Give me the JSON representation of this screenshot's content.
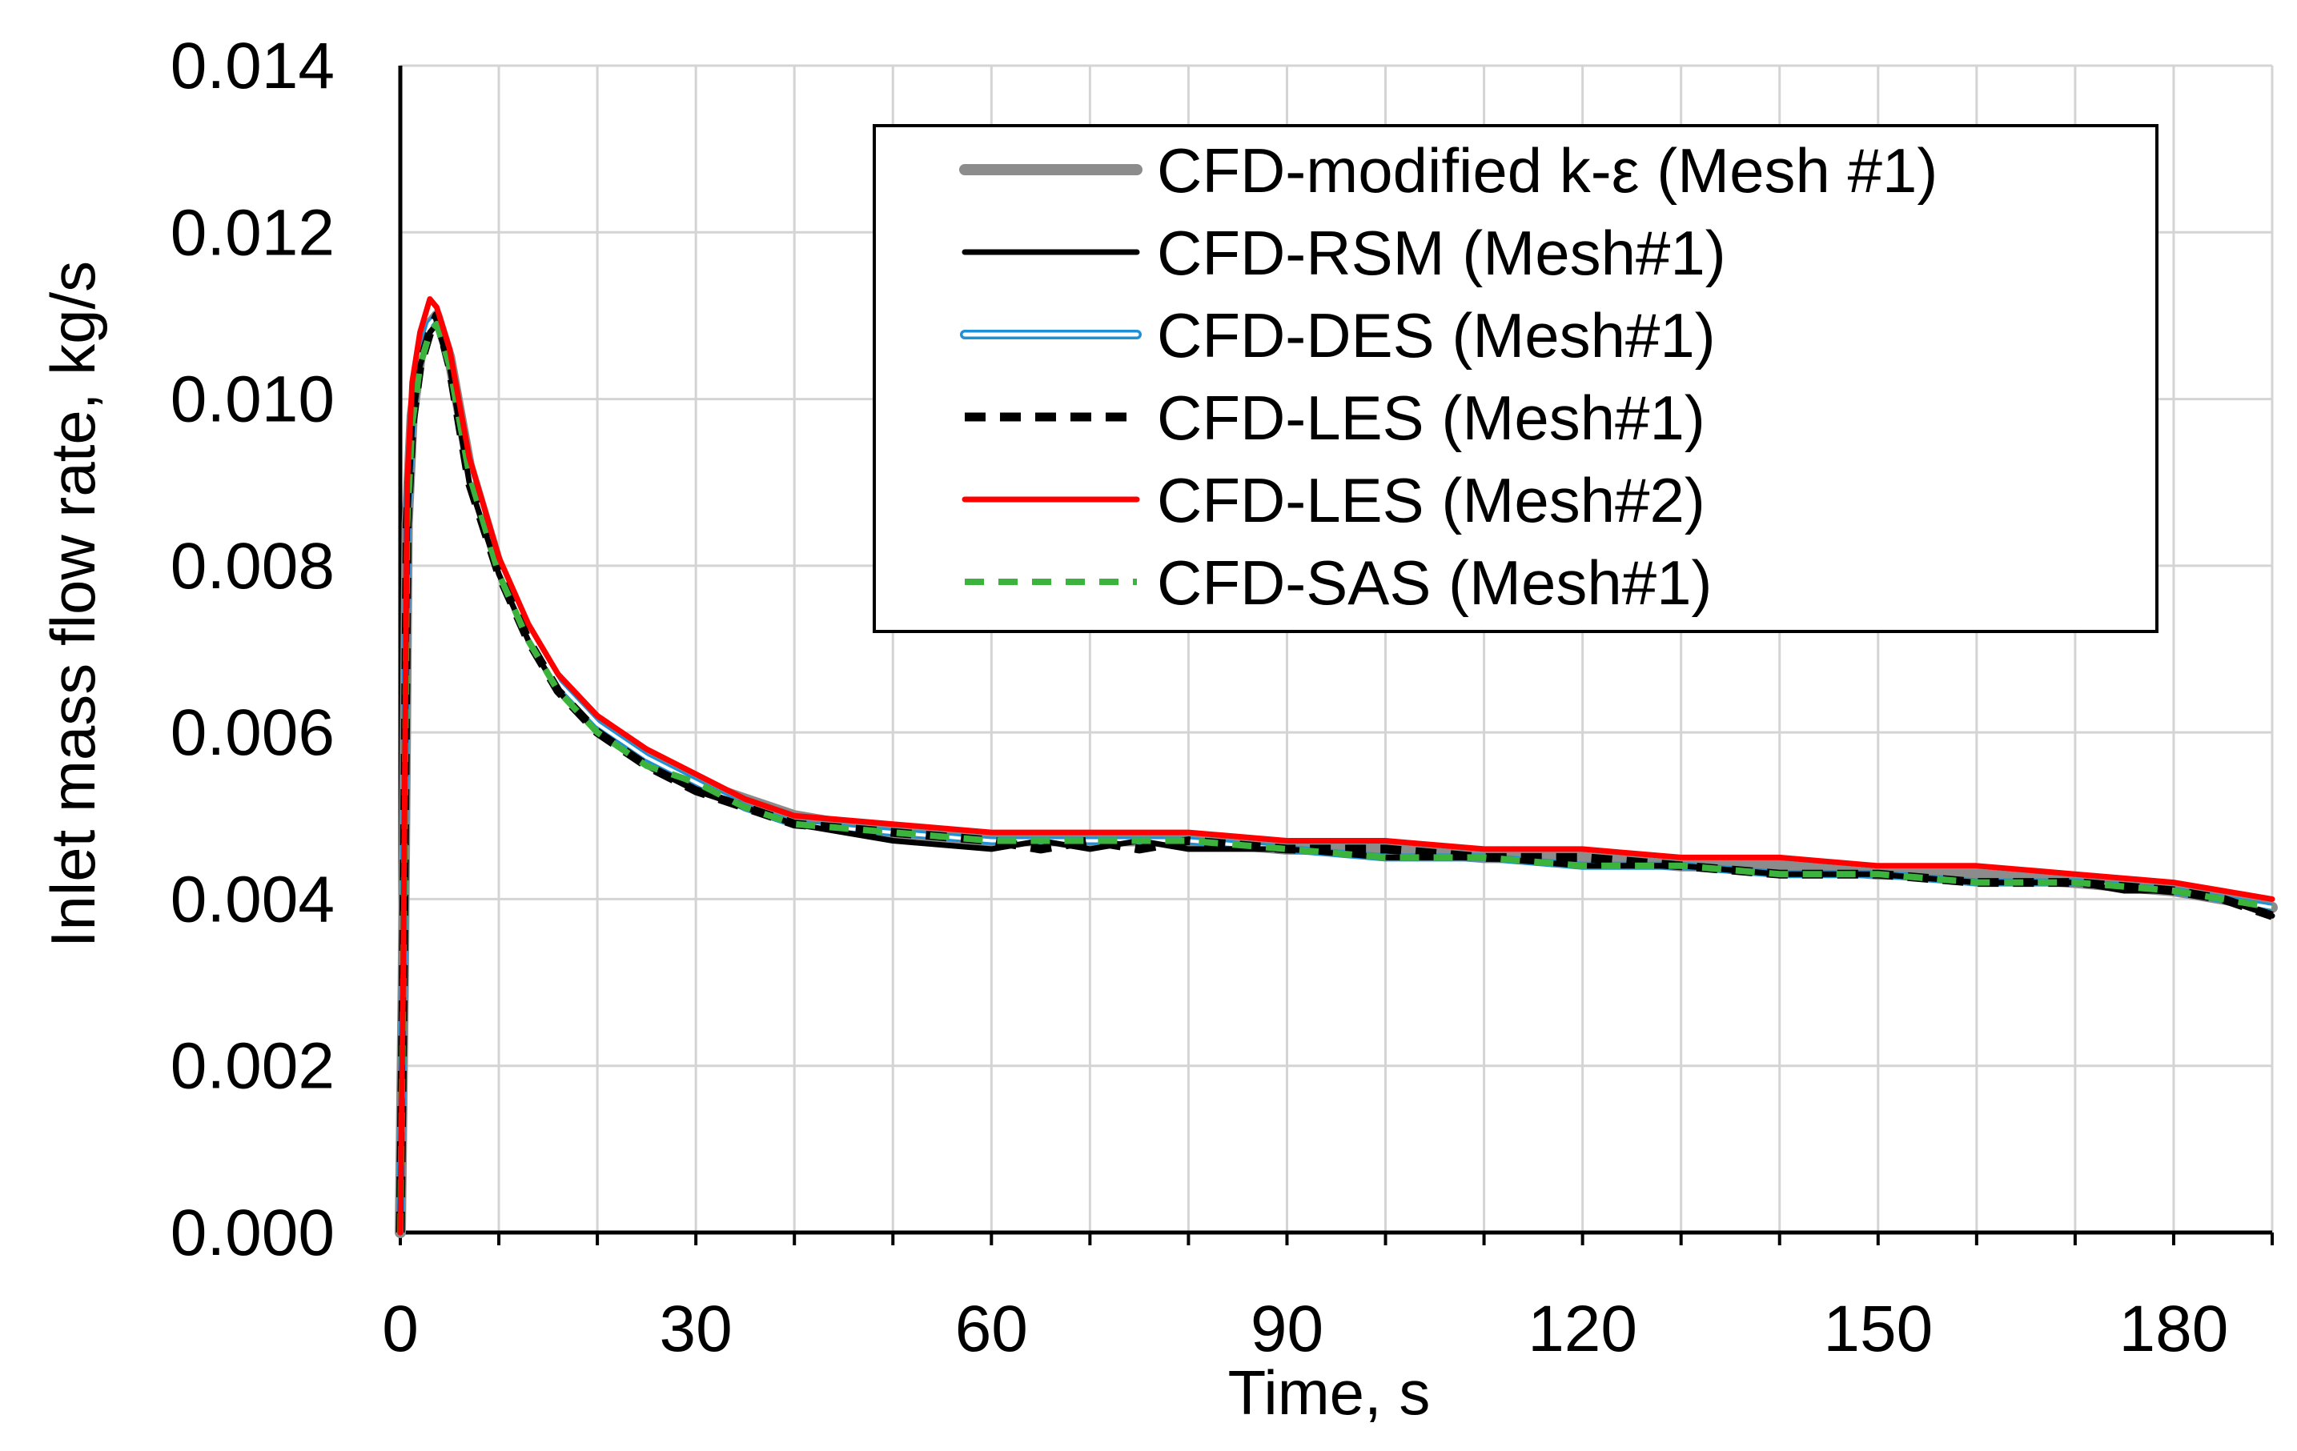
{
  "chart_data": {
    "type": "line",
    "xlabel": "Time, s",
    "ylabel": "Inlet mass flow rate, kg/s",
    "xlim": [
      0,
      190
    ],
    "ylim": [
      0,
      0.014
    ],
    "xticks": [
      0,
      30,
      60,
      90,
      120,
      150,
      180
    ],
    "xtick_labels": [
      "0",
      "30",
      "60",
      "90",
      "120",
      "150",
      "180"
    ],
    "yticks": [
      0,
      0.002,
      0.004,
      0.006,
      0.008,
      0.01,
      0.012,
      0.014
    ],
    "ytick_labels": [
      "0.000",
      "0.002",
      "0.004",
      "0.006",
      "0.008",
      "0.010",
      "0.012",
      "0.014"
    ],
    "grid": true,
    "legend_position": "top-right",
    "series": [
      {
        "name": "CFD-modified k-ε (Mesh #1)",
        "color": "#8c8c8c",
        "style": "solid-thick",
        "x": [
          0,
          0.3,
          0.7,
          1.2,
          2,
          3,
          3.7,
          5,
          7,
          10,
          13,
          16,
          20,
          25,
          30,
          35,
          40,
          50,
          60,
          70,
          80,
          90,
          100,
          110,
          120,
          130,
          140,
          150,
          160,
          170,
          180,
          185,
          190
        ],
        "y": [
          0,
          0.003,
          0.0085,
          0.0098,
          0.0105,
          0.0109,
          0.011,
          0.0105,
          0.0092,
          0.008,
          0.0072,
          0.0066,
          0.0061,
          0.0057,
          0.0054,
          0.0052,
          0.005,
          0.0048,
          0.0047,
          0.0047,
          0.0047,
          0.0046,
          0.0046,
          0.0045,
          0.0045,
          0.0044,
          0.0044,
          0.0043,
          0.0043,
          0.0042,
          0.0041,
          0.004,
          0.0039
        ]
      },
      {
        "name": "CFD-RSM (Mesh#1)",
        "color": "#000000",
        "style": "solid",
        "x": [
          0,
          0.3,
          0.7,
          1.2,
          2,
          3,
          3.7,
          5,
          7,
          10,
          13,
          16,
          20,
          25,
          30,
          35,
          40,
          50,
          60,
          65,
          70,
          75,
          80,
          90,
          100,
          110,
          120,
          130,
          140,
          150,
          160,
          170,
          175,
          180,
          185,
          190
        ],
        "y": [
          0,
          0.003,
          0.0085,
          0.0097,
          0.0104,
          0.0108,
          0.0109,
          0.0104,
          0.009,
          0.0079,
          0.0071,
          0.0065,
          0.006,
          0.0056,
          0.0053,
          0.0051,
          0.0049,
          0.0047,
          0.0046,
          0.0047,
          0.0046,
          0.0047,
          0.0046,
          0.0046,
          0.0045,
          0.0045,
          0.0044,
          0.0044,
          0.0043,
          0.0043,
          0.0042,
          0.0042,
          0.0041,
          0.0041,
          0.004,
          0.0038
        ]
      },
      {
        "name": "CFD-DES (Mesh#1)",
        "color": "#1f8fd6",
        "style": "double",
        "x": [
          0,
          0.3,
          0.7,
          1.2,
          2,
          3,
          3.7,
          5,
          7,
          10,
          13,
          16,
          20,
          25,
          30,
          35,
          40,
          50,
          60,
          70,
          80,
          90,
          100,
          110,
          120,
          130,
          140,
          150,
          160,
          170,
          180,
          185,
          190
        ],
        "y": [
          0,
          0.003,
          0.0086,
          0.0098,
          0.0105,
          0.0109,
          0.011,
          0.0105,
          0.0091,
          0.008,
          0.0072,
          0.0066,
          0.0061,
          0.0057,
          0.0054,
          0.0051,
          0.0049,
          0.0048,
          0.0047,
          0.0047,
          0.0047,
          0.0046,
          0.0045,
          0.0045,
          0.0044,
          0.0044,
          0.0043,
          0.0043,
          0.0042,
          0.0042,
          0.0041,
          0.004,
          0.0039
        ]
      },
      {
        "name": "CFD-LES (Mesh#1)",
        "color": "#000000",
        "style": "dashed-thick",
        "x": [
          0,
          0.3,
          0.7,
          1.2,
          2,
          3,
          3.7,
          5,
          7,
          10,
          13,
          16,
          20,
          25,
          30,
          35,
          40,
          50,
          60,
          65,
          70,
          75,
          80,
          90,
          100,
          110,
          120,
          130,
          140,
          150,
          160,
          170,
          180,
          185,
          190
        ],
        "y": [
          0,
          0.003,
          0.0085,
          0.0097,
          0.0104,
          0.0108,
          0.011,
          0.0104,
          0.009,
          0.0079,
          0.0071,
          0.0065,
          0.006,
          0.0056,
          0.0053,
          0.0051,
          0.0049,
          0.0048,
          0.0047,
          0.0046,
          0.0047,
          0.0046,
          0.0047,
          0.0046,
          0.0046,
          0.0045,
          0.0045,
          0.0044,
          0.0043,
          0.0043,
          0.0042,
          0.0042,
          0.0041,
          0.004,
          0.0038
        ]
      },
      {
        "name": "CFD-LES (Mesh#2)",
        "color": "#ff0000",
        "style": "solid",
        "x": [
          0,
          0.3,
          0.7,
          1.2,
          2,
          3,
          3.7,
          5,
          7,
          10,
          13,
          16,
          20,
          25,
          30,
          35,
          40,
          50,
          60,
          70,
          80,
          90,
          100,
          110,
          120,
          130,
          140,
          150,
          160,
          170,
          180,
          185,
          190
        ],
        "y": [
          0,
          0.0032,
          0.009,
          0.0102,
          0.0108,
          0.0112,
          0.0111,
          0.0106,
          0.0093,
          0.0081,
          0.0073,
          0.0067,
          0.0062,
          0.0058,
          0.0055,
          0.0052,
          0.005,
          0.0049,
          0.0048,
          0.0048,
          0.0048,
          0.0047,
          0.0047,
          0.0046,
          0.0046,
          0.0045,
          0.0045,
          0.0044,
          0.0044,
          0.0043,
          0.0042,
          0.0041,
          0.004
        ]
      },
      {
        "name": "CFD-SAS (Mesh#1)",
        "color": "#3cb33c",
        "style": "dashed",
        "x": [
          0,
          0.3,
          0.7,
          1.2,
          2,
          3,
          3.7,
          5,
          7,
          10,
          13,
          16,
          20,
          25,
          30,
          35,
          40,
          50,
          60,
          70,
          80,
          90,
          100,
          110,
          120,
          130,
          140,
          150,
          160,
          170,
          180,
          185,
          190
        ],
        "y": [
          0,
          0.003,
          0.0085,
          0.0097,
          0.0104,
          0.0108,
          0.0109,
          0.0104,
          0.0091,
          0.0079,
          0.0071,
          0.0065,
          0.006,
          0.0056,
          0.0054,
          0.0051,
          0.0049,
          0.0048,
          0.0047,
          0.0047,
          0.0047,
          0.0046,
          0.0045,
          0.0045,
          0.0044,
          0.0044,
          0.0043,
          0.0043,
          0.0042,
          0.0042,
          0.0041,
          0.004,
          0.0039
        ]
      }
    ]
  }
}
